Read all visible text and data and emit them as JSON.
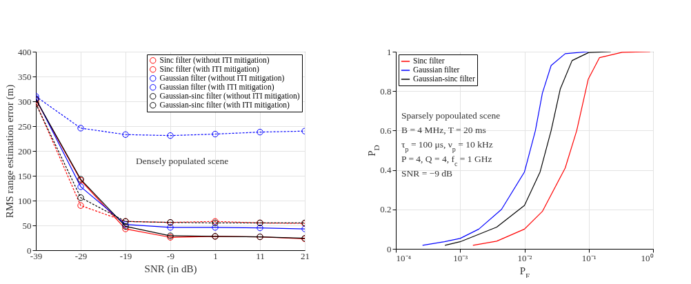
{
  "chart_data": [
    {
      "type": "line",
      "xlabel": "SNR (in dB)",
      "ylabel": "RMS range estimation error (m)",
      "categories": [
        "-39",
        "-29",
        "-19",
        "-9",
        "1",
        "11",
        "21"
      ],
      "ylim": [
        0,
        400
      ],
      "yticks": [
        0,
        50,
        100,
        150,
        200,
        250,
        300,
        350,
        400
      ],
      "grid": true,
      "legend": "top right",
      "marker": "circle",
      "annotations": [
        "Densely populated scene"
      ],
      "series": [
        {
          "name": "Sinc filter (without ITI mitigation)",
          "color": "#ff0000",
          "line_style": "dashed",
          "values": [
            297,
            90,
            58,
            56,
            58,
            55,
            54
          ]
        },
        {
          "name": "Sinc filter (with ITI mitigation)",
          "color": "#ff0000",
          "line_style": "solid",
          "values": [
            303,
            141,
            43,
            26,
            28,
            27,
            23
          ]
        },
        {
          "name": "Gaussian filter (without ITI mitigation)",
          "color": "#0000ff",
          "line_style": "dashed",
          "values": [
            310,
            246,
            233,
            231,
            234,
            238,
            240
          ]
        },
        {
          "name": "Gaussian filter (with ITI mitigation)",
          "color": "#0000ff",
          "line_style": "solid",
          "values": [
            306,
            128,
            52,
            46,
            46,
            45,
            43
          ]
        },
        {
          "name": "Gaussian-sinc filter (without ITI mitigation)",
          "color": "#000000",
          "line_style": "dashed",
          "values": [
            295,
            106,
            58,
            56,
            55,
            55,
            55
          ]
        },
        {
          "name": "Gaussian-sinc filter (with ITI mitigation)",
          "color": "#000000",
          "line_style": "solid",
          "values": [
            304,
            143,
            48,
            29,
            28,
            27,
            24
          ]
        }
      ]
    },
    {
      "type": "line",
      "xlabel": "P$_{F}$",
      "ylabel": "P$_{D}$",
      "log": "x",
      "xlim": [
        0.0001,
        1
      ],
      "xticks": [
        {
          "value": 0.0001,
          "label": "10⁻⁴"
        },
        {
          "value": 0.001,
          "label": "10⁻³"
        },
        {
          "value": 0.01,
          "label": "10⁻²"
        },
        {
          "value": 0.1,
          "label": "10⁻¹"
        },
        {
          "value": 1,
          "label": "10⁰"
        }
      ],
      "ylim": [
        0,
        1
      ],
      "yticks": [
        0,
        0.2,
        0.4,
        0.6,
        0.8,
        1
      ],
      "grid": true,
      "legend": "top left",
      "line_style": "solid",
      "annotations": [
        "Sparsely popoulated scene",
        "B = 4 MHz, T = 20 ms",
        "τ$_{p}$ = 100 μs, ν$_{p}$ = 10 kHz",
        "P = 4, Q = 4, f$_{c}$ = 1 GHz",
        "SNR = −9 dB"
      ],
      "series": [
        {
          "name": "Sinc filter",
          "color": "#ff0000",
          "x": [
            0.00158,
            0.0037,
            0.01,
            0.019,
            0.043,
            0.065,
            0.098,
            0.147,
            0.33,
            0.9
          ],
          "values": [
            0.018,
            0.039,
            0.1,
            0.19,
            0.41,
            0.6,
            0.86,
            0.97,
            0.997,
            1
          ]
        },
        {
          "name": "Gaussian filter",
          "color": "#0000ff",
          "x": [
            0.00026,
            0.00057,
            0.001,
            0.00195,
            0.0044,
            0.01,
            0.0148,
            0.019,
            0.026,
            0.043,
            0.098
          ],
          "values": [
            0.018,
            0.036,
            0.053,
            0.1,
            0.2,
            0.39,
            0.6,
            0.79,
            0.93,
            0.99,
            1
          ]
        },
        {
          "name": "Gaussian-sinc filter",
          "color": "#000000",
          "x": [
            0.00058,
            0.001,
            0.0037,
            0.01,
            0.0175,
            0.026,
            0.036,
            0.055,
            0.1,
            0.22
          ],
          "values": [
            0.018,
            0.036,
            0.11,
            0.22,
            0.39,
            0.6,
            0.81,
            0.955,
            0.996,
            1
          ]
        }
      ]
    }
  ]
}
